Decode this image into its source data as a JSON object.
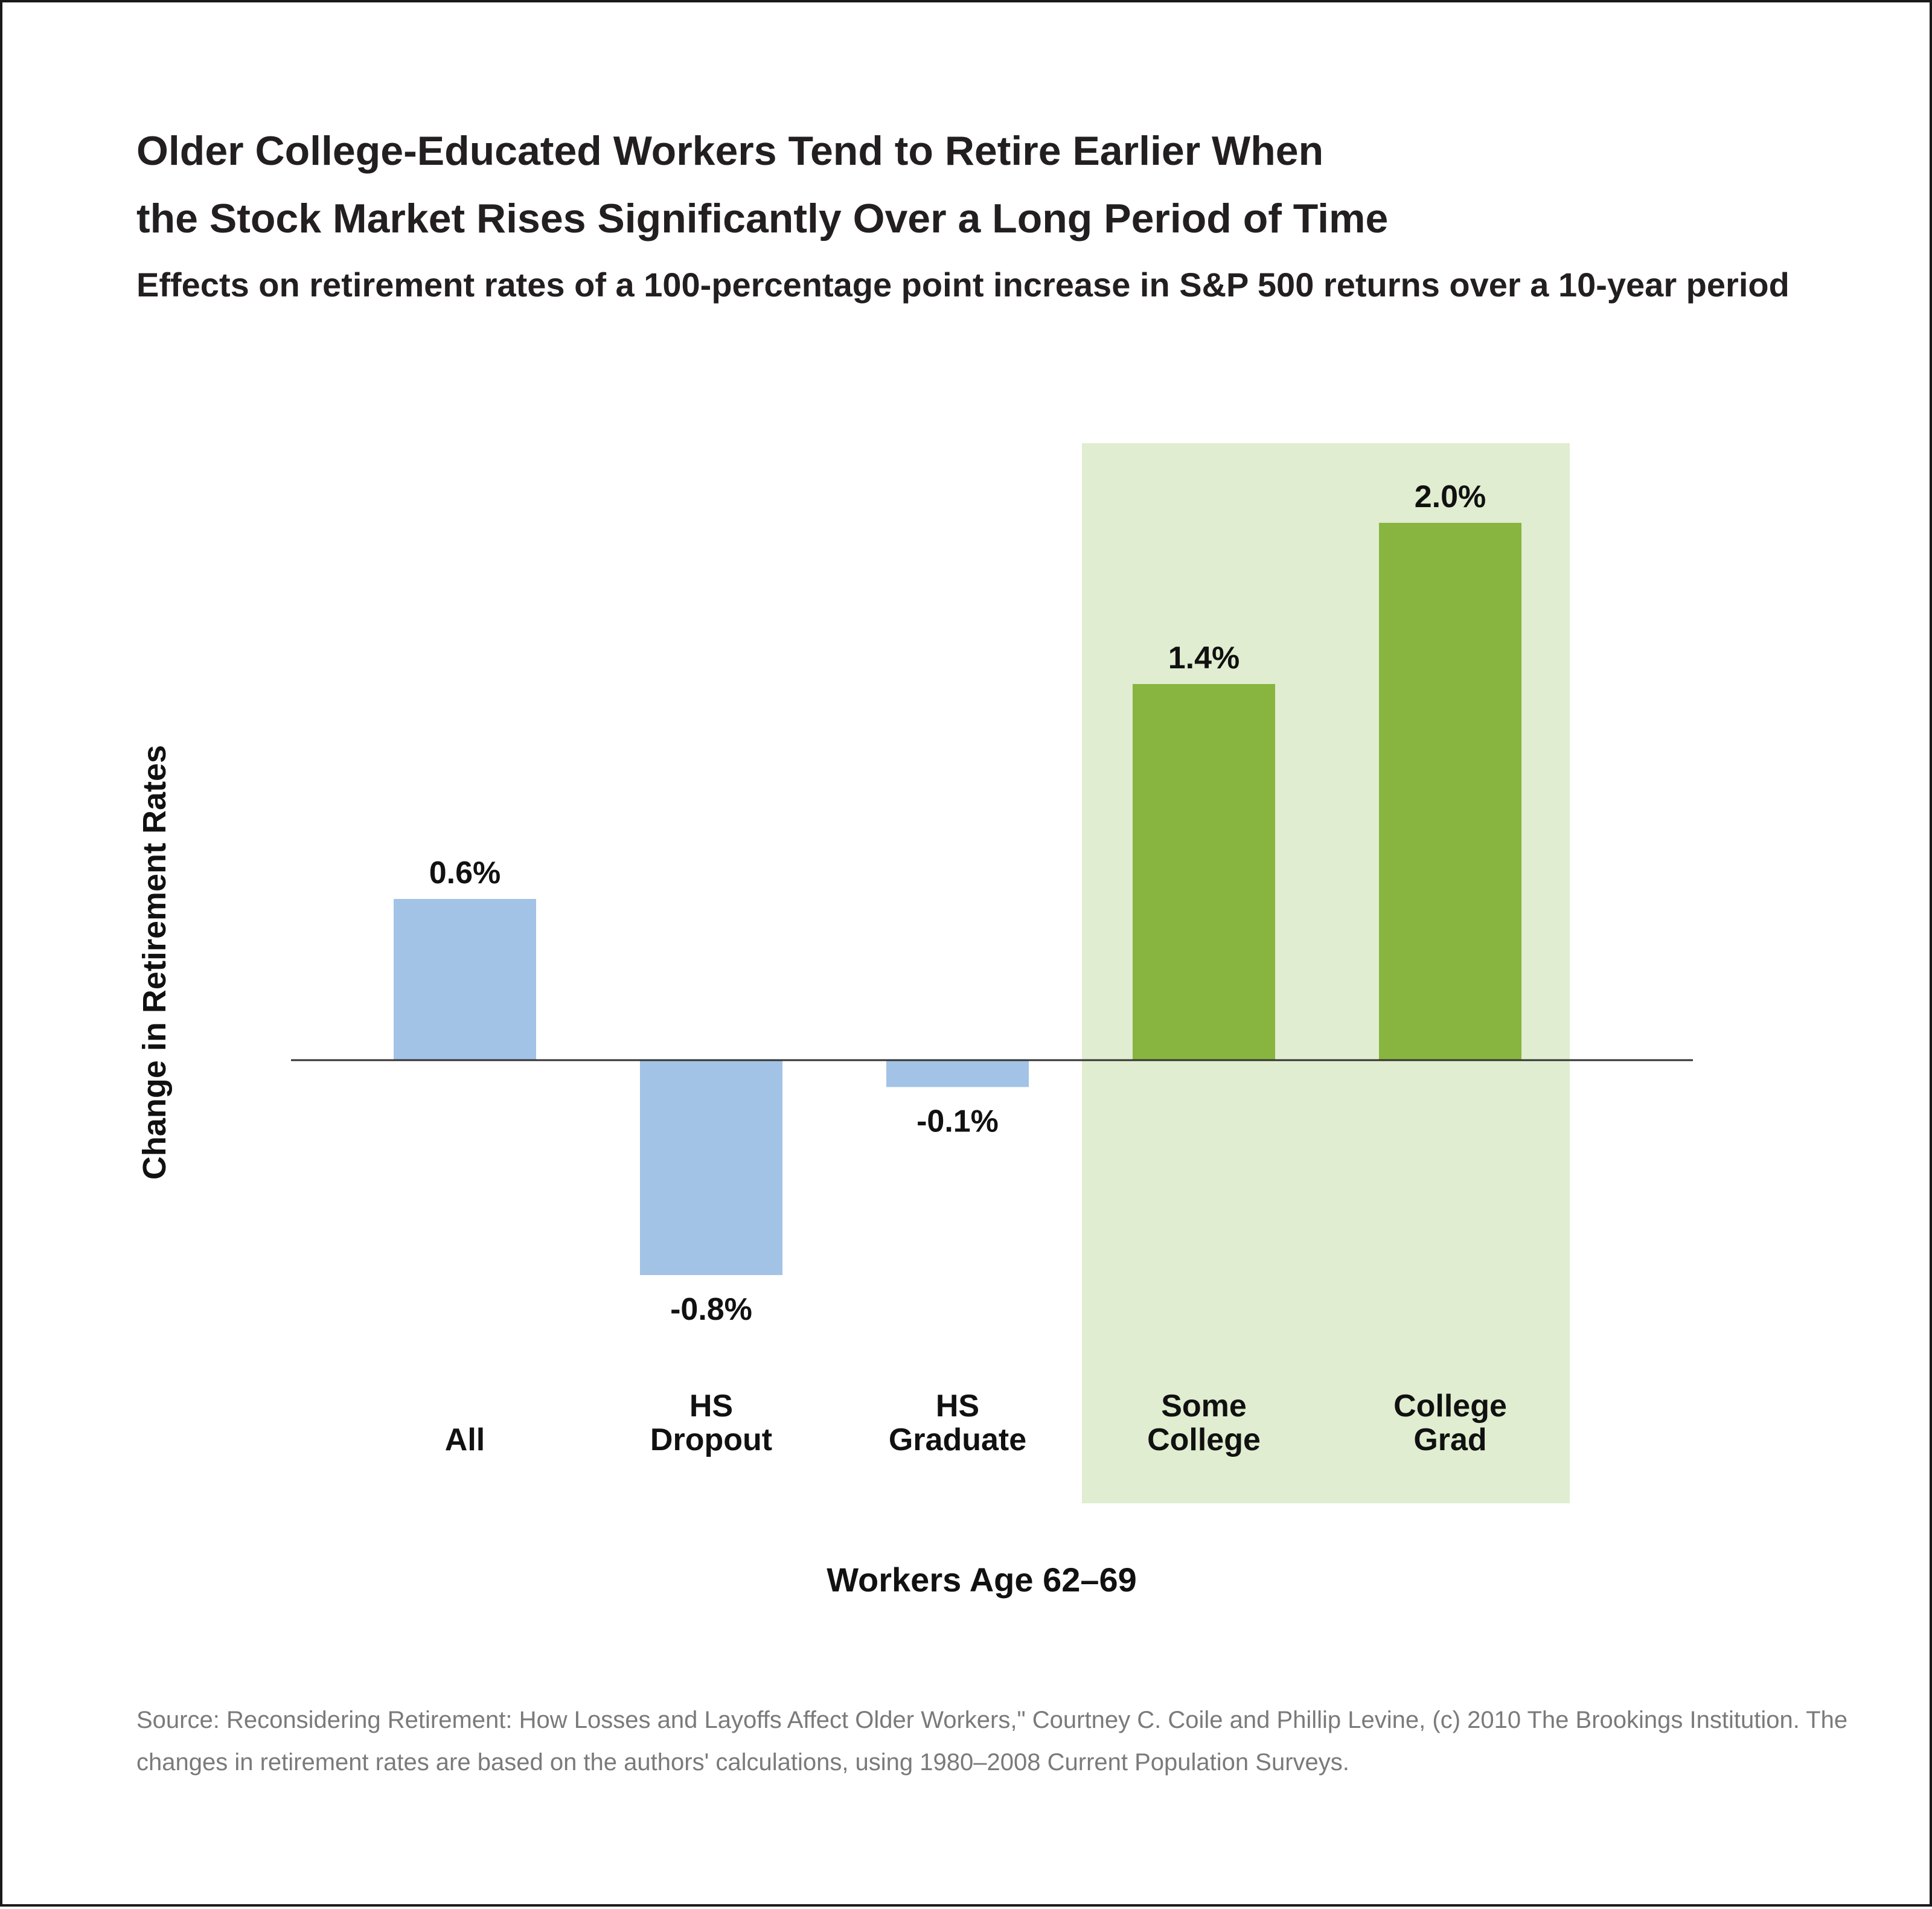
{
  "title_lines": [
    "Older College-Educated Workers Tend to Retire Earlier When",
    "the Stock Market Rises Significantly Over a Long Period of Time"
  ],
  "subtitle": "Effects on retirement rates of a 100-percentage point increase in S&P 500 returns over a 10-year period",
  "source": "Source: Reconsidering Retirement: How Losses and Layoffs Affect Older Workers,\" Courtney C. Coile and Phillip Levine, (c) 2010 The Brookings Institution. The changes in retirement rates are based on the authors' calculations, using 1980–2008 Current Population Surveys.",
  "colors": {
    "blue_bar": "#a2c3e6",
    "green_bar": "#88b540",
    "highlight_bg": "#e0edd0",
    "axis": "#333333"
  },
  "chart_data": {
    "type": "bar",
    "title": "Older College-Educated Workers Tend to Retire Earlier When the Stock Market Rises Significantly Over a Long Period of Time",
    "xlabel": "Workers Age 62–69",
    "ylabel": "Change in Retirement Rates",
    "categories": [
      [
        "All"
      ],
      [
        "HS",
        "Dropout"
      ],
      [
        "HS",
        "Graduate"
      ],
      [
        "Some",
        "College"
      ],
      [
        "College",
        "Grad"
      ]
    ],
    "values": [
      0.6,
      -0.8,
      -0.1,
      1.4,
      2.0
    ],
    "value_labels": [
      "0.6%",
      "-0.8%",
      "-0.1%",
      "1.4%",
      "2.0%"
    ],
    "highlighted": [
      false,
      false,
      false,
      true,
      true
    ],
    "unit": "%",
    "ylim": [
      -1.6,
      2.3
    ],
    "grid": false,
    "legend": "none"
  }
}
